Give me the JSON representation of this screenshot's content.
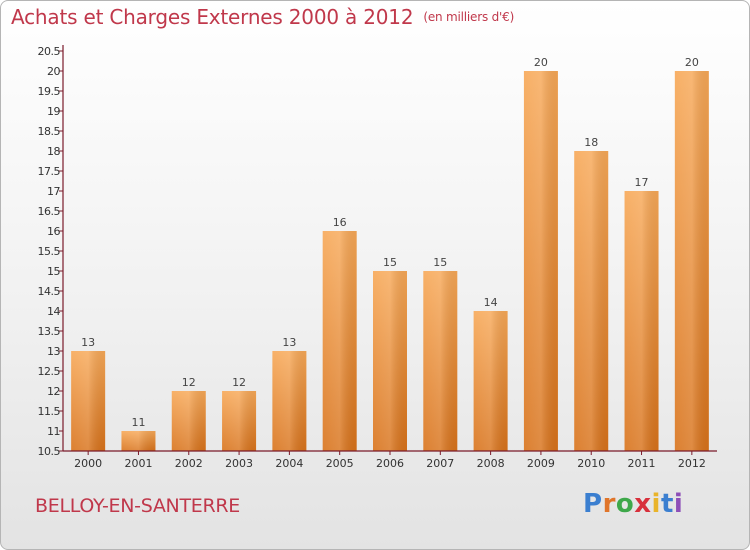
{
  "header": {
    "title": "Achats et Charges Externes 2000 à 2012",
    "unit": "(en milliers d'€)"
  },
  "footer": {
    "city": "BELLOY-EN-SANTERRE",
    "brand": "Proxiti"
  },
  "colors": {
    "bar_top": "#f7a857",
    "bar_bottom": "#d8721a",
    "title": "#c0384b",
    "axis": "#7a1a2a"
  },
  "chart_data": {
    "type": "bar",
    "title": "Achats et Charges Externes 2000 à 2012",
    "categories": [
      "2000",
      "2001",
      "2002",
      "2003",
      "2004",
      "2005",
      "2006",
      "2007",
      "2008",
      "2009",
      "2010",
      "2011",
      "2012"
    ],
    "values": [
      13,
      11,
      12,
      12,
      13,
      16,
      15,
      15,
      14,
      20,
      18,
      17,
      20
    ],
    "data_labels": [
      "13",
      "11",
      "12",
      "12",
      "13",
      "16",
      "15",
      "15",
      "14",
      "20",
      "18",
      "17",
      "20"
    ],
    "ylim": [
      10.5,
      20.5
    ],
    "yticks": [
      "10.5",
      "11",
      "11.5",
      "12",
      "12.5",
      "13",
      "13.5",
      "14",
      "14.5",
      "15",
      "15.5",
      "16",
      "16.5",
      "17",
      "17.5",
      "18",
      "18.5",
      "19",
      "19.5",
      "20",
      "20.5"
    ],
    "grid": false,
    "xlabel": "",
    "ylabel": ""
  }
}
